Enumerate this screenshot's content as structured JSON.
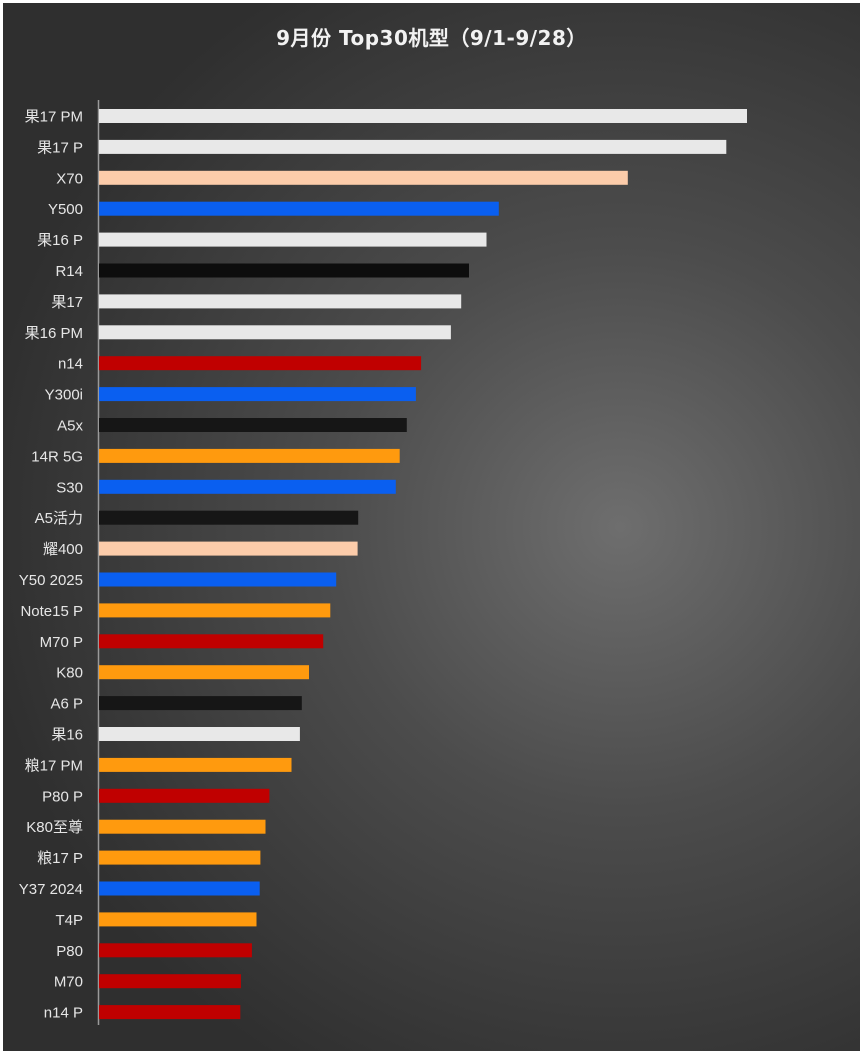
{
  "chart_data": {
    "type": "bar",
    "orientation": "horizontal",
    "title": "9月份 Top30机型（9/1-9/28）",
    "xlabel": "",
    "ylabel": "",
    "grid": false,
    "legend": "none",
    "value_axis_visible": false,
    "xlim": [
      0,
      100
    ],
    "categories": [
      "果17 PM",
      "果17 P",
      "X70",
      "Y500",
      "果16 P",
      "R14",
      "果17",
      "果16 PM",
      "n14",
      "Y300i",
      "A5x",
      "14R 5G",
      "S30",
      "A5活力",
      "耀400",
      "Y50 2025",
      "Note15 P",
      "M70 P",
      "K80",
      "A6 P",
      "果16",
      "粮17 PM",
      "P80 P",
      "K80至尊",
      "粮17 P",
      "Y37 2024",
      "T4P",
      "P80",
      "M70",
      "n14 P"
    ],
    "values": [
      100,
      96.8,
      81.6,
      61.7,
      59.8,
      57.1,
      55.9,
      54.3,
      49.7,
      48.9,
      47.5,
      46.4,
      45.8,
      40.0,
      39.9,
      36.6,
      35.7,
      34.6,
      32.4,
      31.3,
      31.0,
      29.7,
      26.3,
      25.7,
      24.9,
      24.8,
      24.3,
      23.6,
      21.9,
      21.8
    ],
    "colors": [
      "#e8e8e8",
      "#e8e8e8",
      "#fcccaa",
      "#0a5ff0",
      "#e8e8e8",
      "#0d0d0d",
      "#e8e8e8",
      "#e8e8e8",
      "#c00000",
      "#0a5ff0",
      "#161616",
      "#ff9a0e",
      "#0a5ff0",
      "#161616",
      "#fcccaa",
      "#0a5ff0",
      "#ff9a0e",
      "#c00000",
      "#ff9a0e",
      "#161616",
      "#e8e8e8",
      "#ff9a0e",
      "#c00000",
      "#ff9a0e",
      "#ff9a0e",
      "#0a5ff0",
      "#ff9a0e",
      "#c00000",
      "#c00000",
      "#c00000"
    ]
  }
}
